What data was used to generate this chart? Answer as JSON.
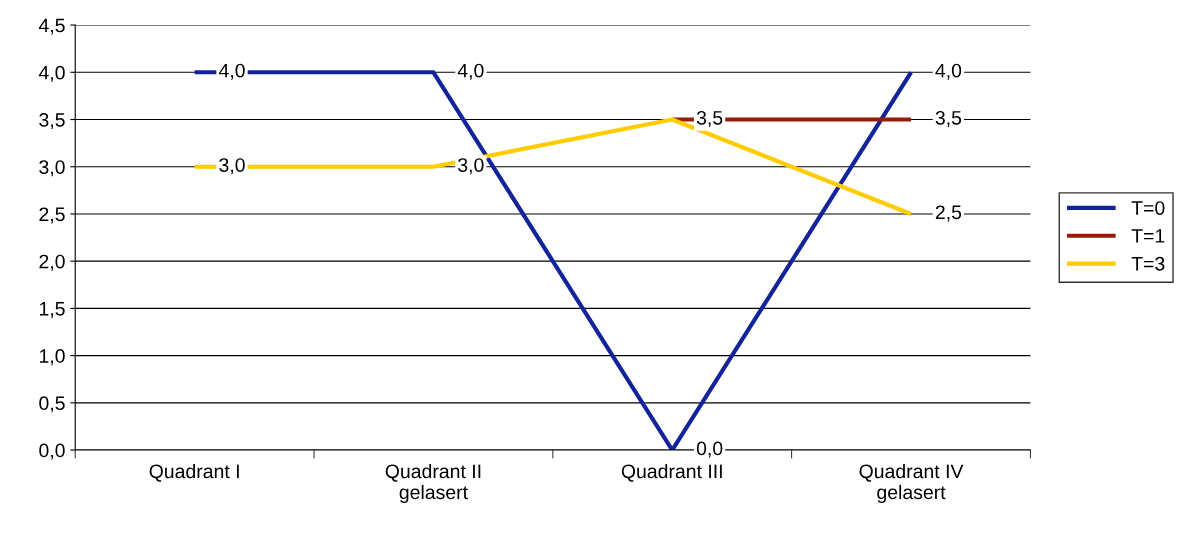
{
  "chart_data": {
    "type": "line",
    "categories": [
      "Quadrant I",
      "Quadrant II\ngelasert",
      "Quadrant III",
      "Quadrant IV\ngelasert"
    ],
    "series": [
      {
        "name": "T=0",
        "color": "#13239a",
        "values": [
          4.0,
          4.0,
          0.0,
          4.0
        ],
        "value_labels": [
          "4,0",
          "4,0",
          "0,0",
          "4,0"
        ]
      },
      {
        "name": "T=1",
        "color": "#9a1a0a",
        "values": [
          null,
          null,
          3.5,
          3.5
        ],
        "value_labels": [
          null,
          null,
          null,
          "3,5"
        ]
      },
      {
        "name": "T=3",
        "color": "#ffcc00",
        "values": [
          3.0,
          3.0,
          3.5,
          2.5
        ],
        "value_labels": [
          "3,0",
          "3,0",
          "3,5",
          "2,5"
        ]
      }
    ],
    "ylim": [
      0,
      4.5
    ],
    "yticks": [
      {
        "value": 0,
        "label": "0,0"
      },
      {
        "value": 0.5,
        "label": "0,5"
      },
      {
        "value": 1,
        "label": "1,0"
      },
      {
        "value": 1.5,
        "label": "1,5"
      },
      {
        "value": 2,
        "label": "2,0"
      },
      {
        "value": 2.5,
        "label": "2,5"
      },
      {
        "value": 3,
        "label": "3,0"
      },
      {
        "value": 3.5,
        "label": "3,5"
      },
      {
        "value": 4,
        "label": "4,0"
      },
      {
        "value": 4.5,
        "label": "4,5"
      }
    ],
    "grid": "y",
    "legend": "right",
    "marker": "none",
    "line_style": "solid"
  }
}
